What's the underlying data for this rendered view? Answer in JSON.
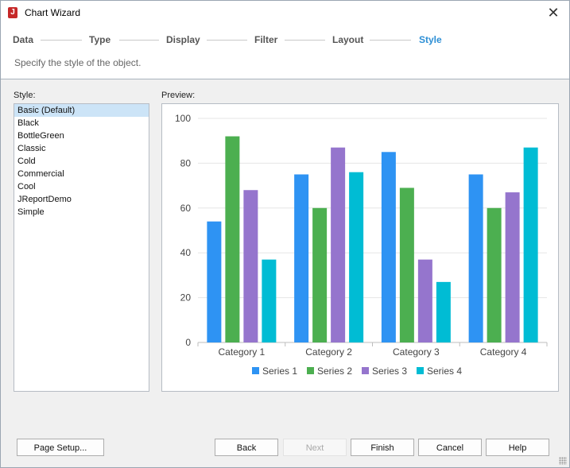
{
  "window": {
    "title": "Chart Wizard"
  },
  "steps": [
    "Data",
    "Type",
    "Display",
    "Filter",
    "Layout",
    "Style"
  ],
  "active_step": 5,
  "subtitle": "Specify the style of the object.",
  "style_label": "Style:",
  "preview_label": "Preview:",
  "styles": [
    "Basic (Default)",
    "Black",
    "BottleGreen",
    "Classic",
    "Cold",
    "Commercial",
    "Cool",
    "JReportDemo",
    "Simple"
  ],
  "selected_style": 0,
  "buttons": {
    "page_setup": "Page Setup...",
    "back": "Back",
    "next": "Next",
    "finish": "Finish",
    "cancel": "Cancel",
    "help": "Help"
  },
  "chart_data": {
    "type": "bar",
    "categories": [
      "Category 1",
      "Category 2",
      "Category 3",
      "Category 4"
    ],
    "series": [
      {
        "name": "Series 1",
        "color": "#2e93f3",
        "values": [
          54,
          75,
          85,
          75
        ]
      },
      {
        "name": "Series 2",
        "color": "#4caf50",
        "values": [
          92,
          60,
          69,
          60
        ]
      },
      {
        "name": "Series 3",
        "color": "#9575cd",
        "values": [
          68,
          87,
          37,
          67
        ]
      },
      {
        "name": "Series 4",
        "color": "#00bcd4",
        "values": [
          37,
          76,
          27,
          87
        ]
      }
    ],
    "yticks": [
      "0",
      "20",
      "40",
      "60",
      "80",
      "100"
    ],
    "ylim": [
      0,
      100
    ],
    "grid": true,
    "legend": "bottom"
  }
}
